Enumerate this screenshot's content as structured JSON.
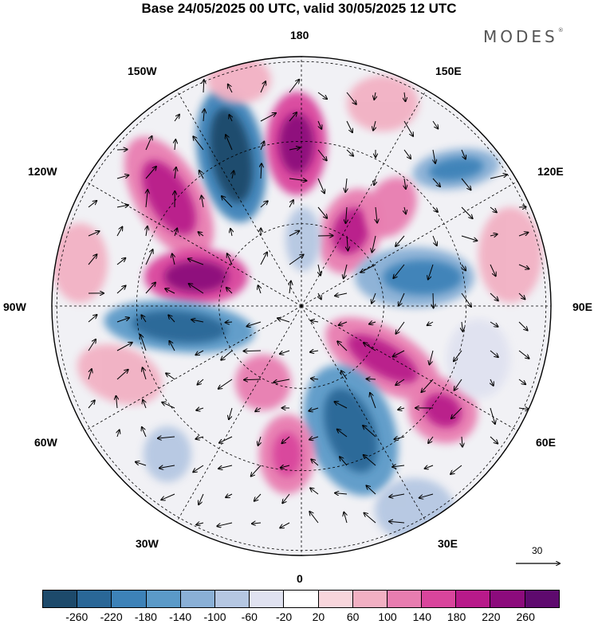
{
  "header": {
    "title": "Base 24/05/2025 00 UTC, valid 30/05/2025 12 UTC",
    "brand": "MODES",
    "brand_mark": "®"
  },
  "map": {
    "projection": "north-polar-stereographic",
    "longitude_labels": {
      "lon_180": "180",
      "lon_150e": "150E",
      "lon_120e": "120E",
      "lon_90e": "90E",
      "lon_60e": "60E",
      "lon_30e": "30E",
      "lon_0": "0",
      "lon_30w": "30W",
      "lon_60w": "60W",
      "lon_90w": "90W",
      "lon_120w": "120W",
      "lon_150w": "150W"
    },
    "reference_vector": {
      "label": "30"
    }
  },
  "colorbar": {
    "ticks": [
      "-260",
      "-220",
      "-180",
      "-140",
      "-100",
      "-60",
      "-20",
      "20",
      "60",
      "100",
      "140",
      "180",
      "220",
      "260"
    ],
    "colors": [
      "#1d4a6b",
      "#2a6797",
      "#3d82b8",
      "#5b9ac8",
      "#8ab0d6",
      "#b5c7e2",
      "#e0e2f0",
      "#ffffff",
      "#f8d6dc",
      "#f2b0c3",
      "#e87db0",
      "#d9459c",
      "#b81a8a",
      "#8c0b7c",
      "#5e0a6e"
    ]
  }
}
